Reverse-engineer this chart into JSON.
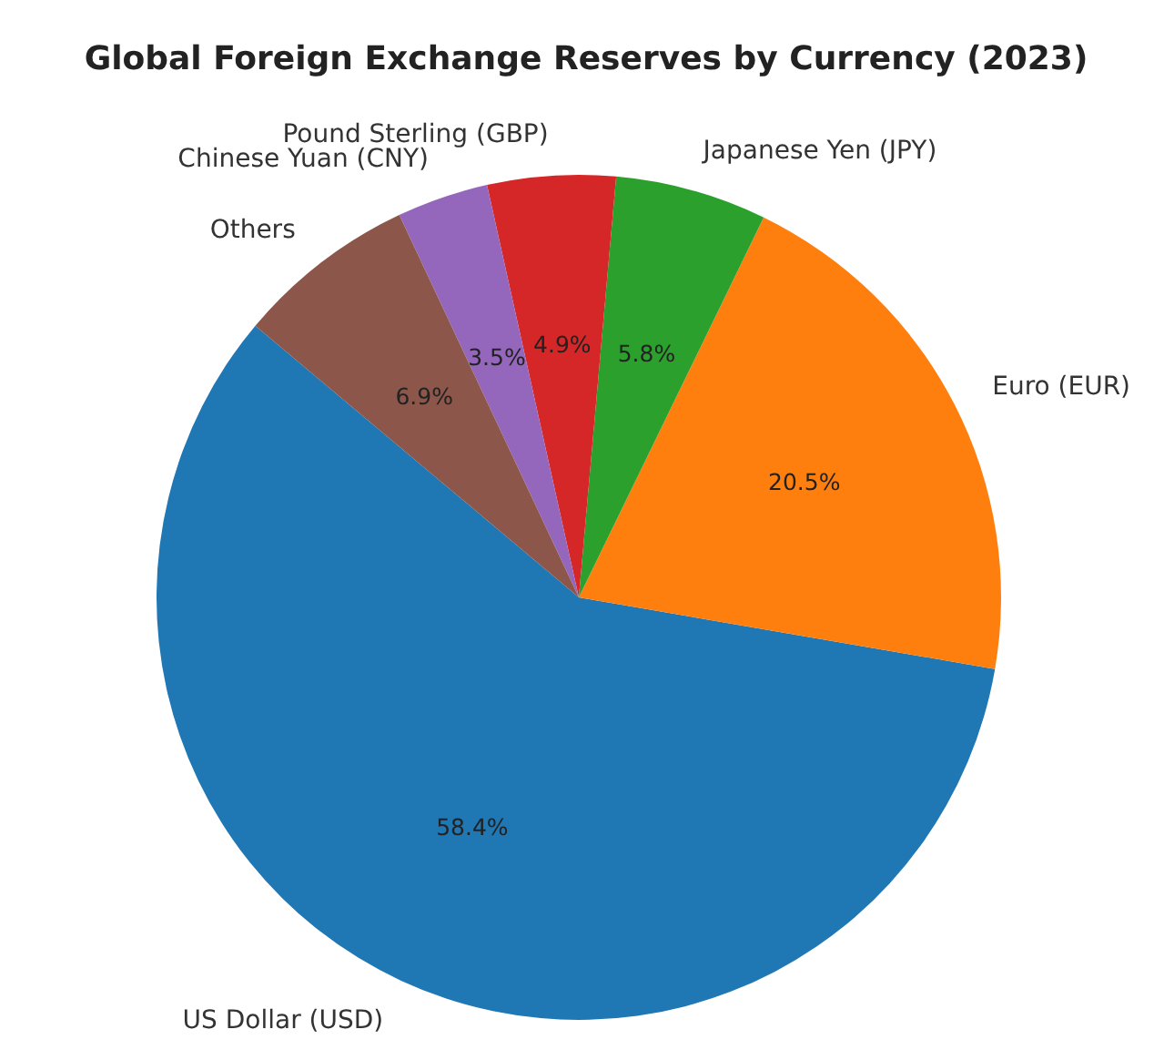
{
  "chart_data": {
    "type": "pie",
    "title": "Global Foreign Exchange Reserves by Currency (2023)",
    "categories": [
      "US Dollar (USD)",
      "Euro (EUR)",
      "Japanese Yen (JPY)",
      "Pound Sterling (GBP)",
      "Chinese Yuan (CNY)",
      "Others"
    ],
    "values": [
      58.4,
      20.5,
      5.8,
      4.9,
      3.5,
      6.9
    ],
    "colors": [
      "#1f77b4",
      "#ff7f0e",
      "#2ca02c",
      "#d62728",
      "#9467bd",
      "#8c564b"
    ],
    "value_labels": [
      "58.4%",
      "20.5%",
      "5.8%",
      "4.9%",
      "3.5%",
      "6.9%"
    ]
  }
}
